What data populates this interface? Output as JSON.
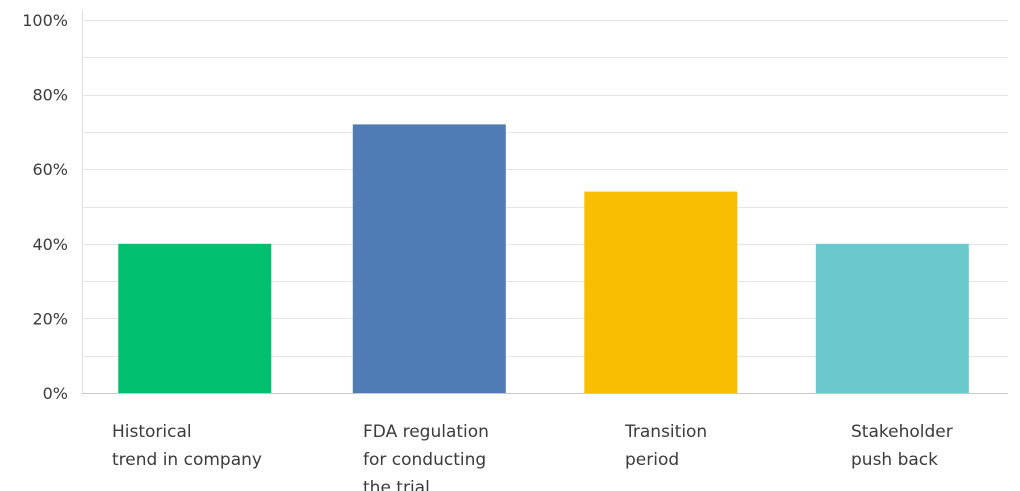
{
  "chart_data": {
    "type": "bar",
    "categories": [
      [
        "Historical",
        "trend in company"
      ],
      [
        "FDA regulation",
        "for conducting",
        "the trial"
      ],
      [
        "Transition",
        "period"
      ],
      [
        "Stakeholder",
        "push back"
      ]
    ],
    "values": [
      40,
      72,
      54,
      40
    ],
    "colors": [
      "#00bf6f",
      "#507cb6",
      "#f9be00",
      "#6bc8cd"
    ],
    "yticks": [
      "0%",
      "20%",
      "40%",
      "60%",
      "80%",
      "100%"
    ],
    "ylim": [
      0,
      100
    ],
    "ytick_step": 20,
    "minor_gridlines": true,
    "title": "",
    "xlabel": "",
    "ylabel": ""
  }
}
